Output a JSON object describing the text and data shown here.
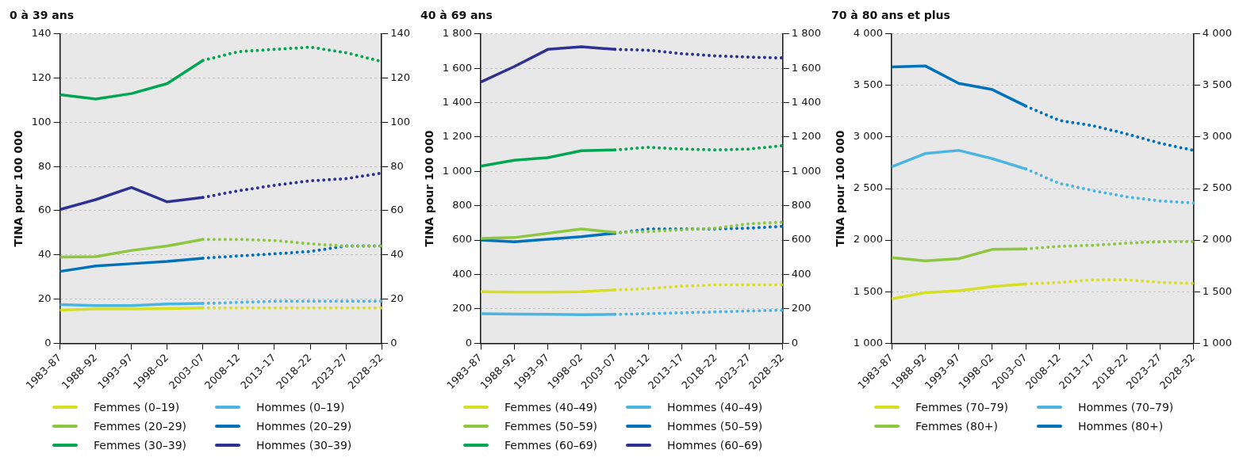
{
  "chart_data": [
    {
      "type": "line",
      "title": "0 à 39 ans",
      "ylabel": "TINA pour 100 000",
      "categories": [
        "1983–87",
        "1988–92",
        "1993–97",
        "1998–02",
        "2003–07",
        "2008–12",
        "2013–17",
        "2018–22",
        "2023–27",
        "2028–32"
      ],
      "ylim": [
        0,
        140
      ],
      "yticks": [
        0,
        20,
        40,
        60,
        80,
        100,
        120,
        140
      ],
      "y2lim": [
        0,
        140
      ],
      "y2ticks": [
        0,
        20,
        40,
        60,
        80,
        100,
        120,
        140
      ],
      "grid": "y",
      "legend": "bottom",
      "marker": "none",
      "line_style": "solid",
      "series": [
        {
          "name": "Femmes (0–19)",
          "color": "#d7df23",
          "values": [
            15,
            15.5,
            15.5,
            15.7,
            16,
            null,
            null,
            null,
            null,
            null
          ]
        },
        {
          "name": "Femmes (20–29)",
          "color": "#8dc63f",
          "values": [
            39,
            39.2,
            42,
            44,
            47,
            null,
            null,
            null,
            null,
            null
          ]
        },
        {
          "name": "Femmes (30–39)",
          "color": "#00a651",
          "values": [
            112.5,
            110.5,
            113,
            117.5,
            128,
            null,
            null,
            null,
            null,
            null
          ]
        },
        {
          "name": "Hommes (0–19)",
          "color": "#4ab5e0",
          "values": [
            17.5,
            17,
            17,
            17.8,
            18,
            null,
            null,
            null,
            null,
            null
          ]
        },
        {
          "name": "Hommes (20–29)",
          "color": "#0072bc",
          "values": [
            32.5,
            35,
            36,
            37,
            38.5,
            null,
            null,
            null,
            null,
            null
          ]
        },
        {
          "name": "Hommes (30–39)",
          "color": "#2e3192",
          "values": [
            60.5,
            65,
            70.5,
            64,
            66,
            null,
            null,
            null,
            null,
            null
          ]
        },
        {
          "color": "#d7df23",
          "line_style": "dotted",
          "values": [
            null,
            null,
            null,
            null,
            16,
            16,
            16,
            16,
            16,
            16
          ]
        },
        {
          "color": "#8dc63f",
          "line_style": "dotted",
          "values": [
            null,
            null,
            null,
            null,
            47,
            47,
            46.5,
            45,
            44,
            44
          ]
        },
        {
          "color": "#00a651",
          "line_style": "dotted",
          "values": [
            null,
            null,
            null,
            null,
            128,
            132,
            133,
            134,
            131.5,
            127.5
          ]
        },
        {
          "color": "#4ab5e0",
          "line_style": "dotted",
          "values": [
            null,
            null,
            null,
            null,
            18,
            18.5,
            19,
            19,
            19,
            19
          ]
        },
        {
          "color": "#0072bc",
          "line_style": "dotted",
          "values": [
            null,
            null,
            null,
            null,
            38.5,
            39.5,
            40.5,
            41.5,
            44,
            44
          ]
        },
        {
          "color": "#2e3192",
          "line_style": "dotted",
          "values": [
            null,
            null,
            null,
            null,
            66,
            69,
            71.5,
            73.5,
            74.5,
            77
          ]
        }
      ]
    },
    {
      "type": "line",
      "title": "40 à 69 ans",
      "ylabel": "TINA pour 100 000",
      "categories": [
        "1983–87",
        "1988–92",
        "1993–97",
        "1998–02",
        "2003–07",
        "2008–12",
        "2013–17",
        "2018–22",
        "2023–27",
        "2028–32"
      ],
      "ylim": [
        0,
        1800
      ],
      "yticks": [
        0,
        200,
        400,
        600,
        800,
        {
          "value": 1000,
          "label": "1 000"
        },
        {
          "value": 1200,
          "label": "1 200"
        },
        {
          "value": 1400,
          "label": "1 400"
        },
        {
          "value": 1600,
          "label": "1 600"
        },
        {
          "value": 1800,
          "label": "1 800"
        }
      ],
      "y2lim": [
        0,
        1800
      ],
      "y2ticks": [
        0,
        200,
        400,
        600,
        800,
        {
          "value": 1000,
          "label": "1 000"
        },
        {
          "value": 1200,
          "label": "1 200"
        },
        {
          "value": 1400,
          "label": "1 400"
        },
        {
          "value": 1600,
          "label": "1 600"
        },
        {
          "value": 1800,
          "label": "1 800"
        }
      ],
      "grid": "y",
      "legend": "bottom",
      "marker": "none",
      "line_style": "solid",
      "series": [
        {
          "name": "Femmes (40–49)",
          "color": "#d7df23",
          "values": [
            300,
            298,
            298,
            300,
            310,
            null,
            null,
            null,
            null,
            null
          ]
        },
        {
          "name": "Femmes (50–59)",
          "color": "#8dc63f",
          "values": [
            610,
            615,
            640,
            665,
            645,
            null,
            null,
            null,
            null,
            null
          ]
        },
        {
          "name": "Femmes (60–69)",
          "color": "#00a651",
          "values": [
            1030,
            1065,
            1080,
            1120,
            1125,
            null,
            null,
            null,
            null,
            null
          ]
        },
        {
          "name": "Hommes (40–49)",
          "color": "#4ab5e0",
          "values": [
            172,
            170,
            168,
            166,
            168,
            null,
            null,
            null,
            null,
            null
          ]
        },
        {
          "name": "Hommes (50–59)",
          "color": "#0072bc",
          "values": [
            600,
            590,
            605,
            620,
            640,
            null,
            null,
            null,
            null,
            null
          ]
        },
        {
          "name": "Hommes (60–69)",
          "color": "#2e3192",
          "values": [
            1520,
            1610,
            1710,
            1725,
            1710,
            null,
            null,
            null,
            null,
            null
          ]
        },
        {
          "color": "#d7df23",
          "line_style": "dotted",
          "values": [
            null,
            null,
            null,
            null,
            310,
            318,
            332,
            340,
            340,
            340
          ]
        },
        {
          "color": "#8dc63f",
          "line_style": "dotted",
          "values": [
            null,
            null,
            null,
            null,
            645,
            650,
            660,
            670,
            695,
            705
          ]
        },
        {
          "color": "#00a651",
          "line_style": "dotted",
          "values": [
            null,
            null,
            null,
            null,
            1125,
            1140,
            1130,
            1125,
            1130,
            1150
          ]
        },
        {
          "color": "#4ab5e0",
          "line_style": "dotted",
          "values": [
            null,
            null,
            null,
            null,
            168,
            172,
            177,
            182,
            188,
            192
          ]
        },
        {
          "color": "#0072bc",
          "line_style": "dotted",
          "values": [
            null,
            null,
            null,
            null,
            640,
            665,
            665,
            665,
            670,
            680
          ]
        },
        {
          "color": "#2e3192",
          "line_style": "dotted",
          "values": [
            null,
            null,
            null,
            null,
            1710,
            1705,
            1685,
            1672,
            1665,
            1660
          ]
        }
      ]
    },
    {
      "type": "line",
      "title": "70 à 80 ans et plus",
      "ylabel": "TINA pour 100 000",
      "categories": [
        "1983–87",
        "1988–92",
        "1993–97",
        "1998–02",
        "2003–07",
        "2008–12",
        "2013–17",
        "2018–22",
        "2023–27",
        "2028–32"
      ],
      "ylim": [
        1000,
        4000
      ],
      "yticks": [
        {
          "value": 1000,
          "label": "1 000"
        },
        {
          "value": 1500,
          "label": "1 500"
        },
        {
          "value": 2000,
          "label": "2 000"
        },
        {
          "value": 2500,
          "label": "2 500"
        },
        {
          "value": 3000,
          "label": "3 000"
        },
        {
          "value": 3500,
          "label": "3 500"
        },
        {
          "value": 4000,
          "label": "4 000"
        }
      ],
      "y2lim": [
        1000,
        4000
      ],
      "y2ticks": [
        {
          "value": 1000,
          "label": "1 000"
        },
        {
          "value": 1500,
          "label": "1 500"
        },
        {
          "value": 2000,
          "label": "2 000"
        },
        {
          "value": 2500,
          "label": "2 500"
        },
        {
          "value": 3000,
          "label": "3 000"
        },
        {
          "value": 3500,
          "label": "3 500"
        },
        {
          "value": 4000,
          "label": "4 000"
        }
      ],
      "grid": "y",
      "legend": "bottom",
      "marker": "none",
      "line_style": "solid",
      "series": [
        {
          "name": "Femmes (70–79)",
          "color": "#d7df23",
          "values": [
            1430,
            1490,
            1510,
            1550,
            1575,
            null,
            null,
            null,
            null,
            null
          ]
        },
        {
          "name": "Femmes (80+)",
          "color": "#8dc63f",
          "values": [
            1830,
            1800,
            1820,
            1910,
            1915,
            null,
            null,
            null,
            null,
            null
          ]
        },
        {
          "name": "Hommes (70–79)",
          "color": "#4ab5e0",
          "values": [
            2710,
            2840,
            2870,
            2790,
            2690,
            null,
            null,
            null,
            null,
            null
          ]
        },
        {
          "name": "Hommes (80+)",
          "color": "#0072bc",
          "values": [
            3680,
            3690,
            3520,
            3460,
            3300,
            null,
            null,
            null,
            null,
            null
          ]
        },
        {
          "color": "#d7df23",
          "line_style": "dotted",
          "values": [
            null,
            null,
            null,
            null,
            1575,
            1590,
            1615,
            1615,
            1590,
            1580
          ]
        },
        {
          "color": "#8dc63f",
          "line_style": "dotted",
          "values": [
            null,
            null,
            null,
            null,
            1915,
            1940,
            1950,
            1970,
            1985,
            1985
          ]
        },
        {
          "color": "#4ab5e0",
          "line_style": "dotted",
          "values": [
            null,
            null,
            null,
            null,
            2690,
            2550,
            2480,
            2420,
            2380,
            2360
          ]
        },
        {
          "color": "#0072bc",
          "line_style": "dotted",
          "values": [
            null,
            null,
            null,
            null,
            3300,
            3160,
            3110,
            3030,
            2940,
            2870
          ]
        }
      ]
    }
  ]
}
